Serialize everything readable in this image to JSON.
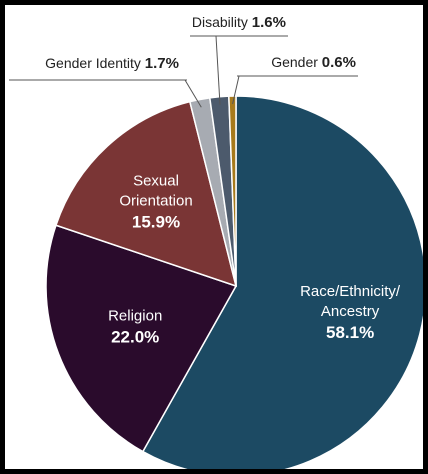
{
  "chart_data": {
    "type": "pie",
    "start": "12 o'clock, clockwise",
    "slices": [
      {
        "name": "Race/Ethnicity/ Ancestry",
        "lines": [
          "Race/Ethnicity/",
          "Ancestry"
        ],
        "value": 58.1,
        "label": "58.1%",
        "color": "#1c4a63",
        "label_placement": "inside"
      },
      {
        "name": "Religion",
        "lines": [
          "Religion"
        ],
        "value": 22.0,
        "label": "22.0%",
        "color": "#2a0b2c",
        "label_placement": "inside"
      },
      {
        "name": "Sexual Orientation",
        "lines": [
          "Sexual",
          "Orientation"
        ],
        "value": 15.9,
        "label": "15.9%",
        "color": "#7a3535",
        "label_placement": "inside"
      },
      {
        "name": "Gender Identity",
        "lines": [
          "Gender Identity"
        ],
        "value": 1.7,
        "label": "1.7%",
        "color": "#a7abb2",
        "label_placement": "callout"
      },
      {
        "name": "Disability",
        "lines": [
          "Disability"
        ],
        "value": 1.6,
        "label": "1.6%",
        "color": "#4c5a6c",
        "label_placement": "callout"
      },
      {
        "name": "Gender",
        "lines": [
          "Gender"
        ],
        "value": 0.6,
        "label": "0.6%",
        "color": "#a77a1c",
        "label_placement": "callout"
      }
    ]
  }
}
